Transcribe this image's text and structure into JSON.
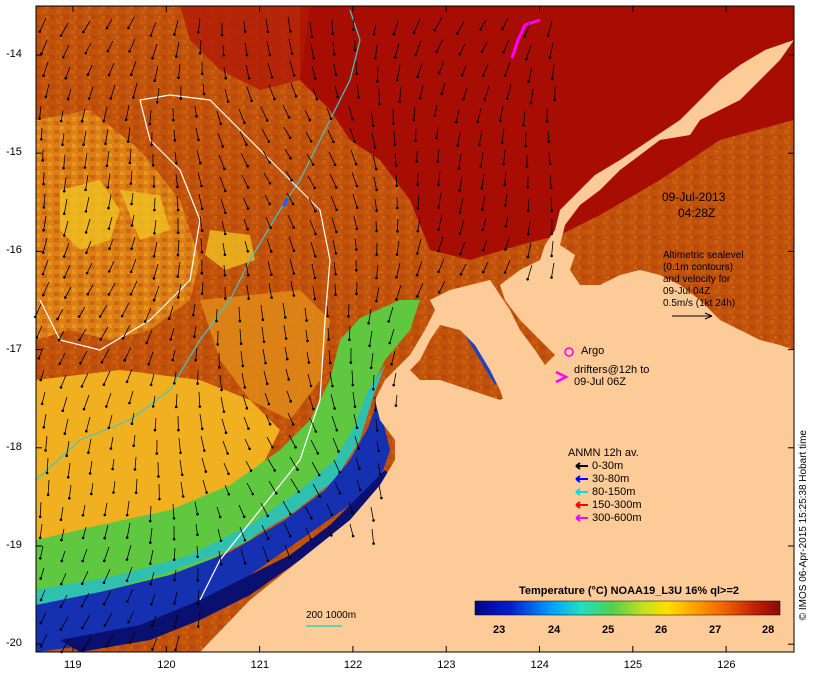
{
  "map": {
    "y_ticks": [
      "-14",
      "-15",
      "-16",
      "-17",
      "-18",
      "-19",
      "-20"
    ],
    "x_ticks": [
      "119",
      "120",
      "121",
      "122",
      "123",
      "124",
      "125",
      "126"
    ],
    "date_line1": "09-Jul-2013",
    "date_line2": "04:28Z",
    "altimetry_text": [
      "Altimetric sealevel",
      "(0.1m contours)",
      "and velocity for",
      "09-Jul 04Z",
      "0.5m/s (1kt 24h)"
    ],
    "argo_label": "Argo",
    "drifters_text": [
      "drifters@12h to",
      "09-Jul 06Z"
    ],
    "anmn_title": "ANMN 12h av.",
    "anmn_legend": [
      {
        "label": "0-30m",
        "color": "#000000"
      },
      {
        "label": "30-80m",
        "color": "#0000ff"
      },
      {
        "label": "80-150m",
        "color": "#00e0e0"
      },
      {
        "label": "150-300m",
        "color": "#ff0000"
      },
      {
        "label": "300-600m",
        "color": "#ff00ff"
      }
    ],
    "contour_label": "200  1000m",
    "colorbar_title": "Temperature (°C) NOAA19_L3U 16% ql>=2",
    "colorbar_ticks": [
      "23",
      "24",
      "25",
      "26",
      "27",
      "28"
    ],
    "credit": "© IMOS 06-Apr-2015 15:25:38 Hobart time",
    "colors": {
      "land": "#fdcb98",
      "warm": "#a80d04",
      "coast_blue": "#1020a0",
      "magenta": "#ff00ff"
    }
  }
}
